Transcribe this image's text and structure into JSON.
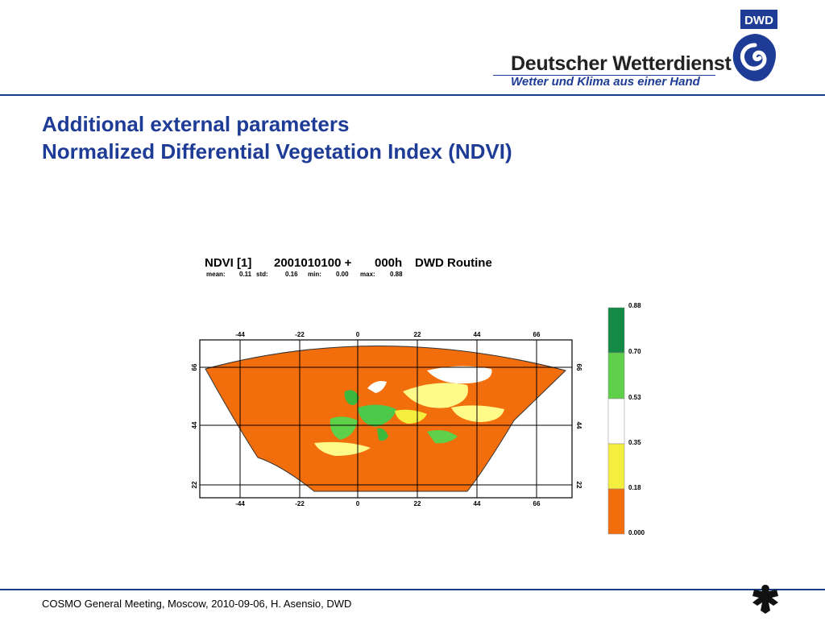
{
  "slide": {
    "title_line1": "Additional external parameters",
    "title_line2": "Normalized Differential Vegetation Index (NDVI)",
    "footer": "COSMO General Meeting, Moscow, 2010-09-06, H. Asensio, DWD"
  },
  "brand": {
    "logo_text": "DWD",
    "name": "Deutscher Wetterdienst",
    "slogan": "Wetter und Klima aus einer Hand"
  },
  "map": {
    "title_var": "NDVI [1]",
    "title_date": "2001010100 +",
    "title_lead": "000h",
    "title_source": "DWD Routine",
    "stats": {
      "mean_label": "mean:",
      "mean": "0.11",
      "std_label": "std:",
      "std": "0.16",
      "min_label": "min:",
      "min": "0.00",
      "max_label": "max:",
      "max": "0.88"
    },
    "lon_ticks": [
      "-44",
      "-22",
      "0",
      "22",
      "44",
      "66"
    ],
    "lat_ticks": [
      "66",
      "44",
      "22"
    ]
  },
  "legend": {
    "labels": [
      "0.88",
      "0.70",
      "0.53",
      "0.35",
      "0.18",
      "0.000"
    ],
    "colors": [
      "#138a45",
      "#5fd04a",
      "#ffffff",
      "#f4ee3e",
      "#f26d0c"
    ]
  },
  "colors": {
    "accent": "#1e3c96",
    "ocean": "#f26d0c",
    "land_green": "#3cb83c",
    "land_yellow": "#fffb8a",
    "land_white": "#ffffff"
  }
}
